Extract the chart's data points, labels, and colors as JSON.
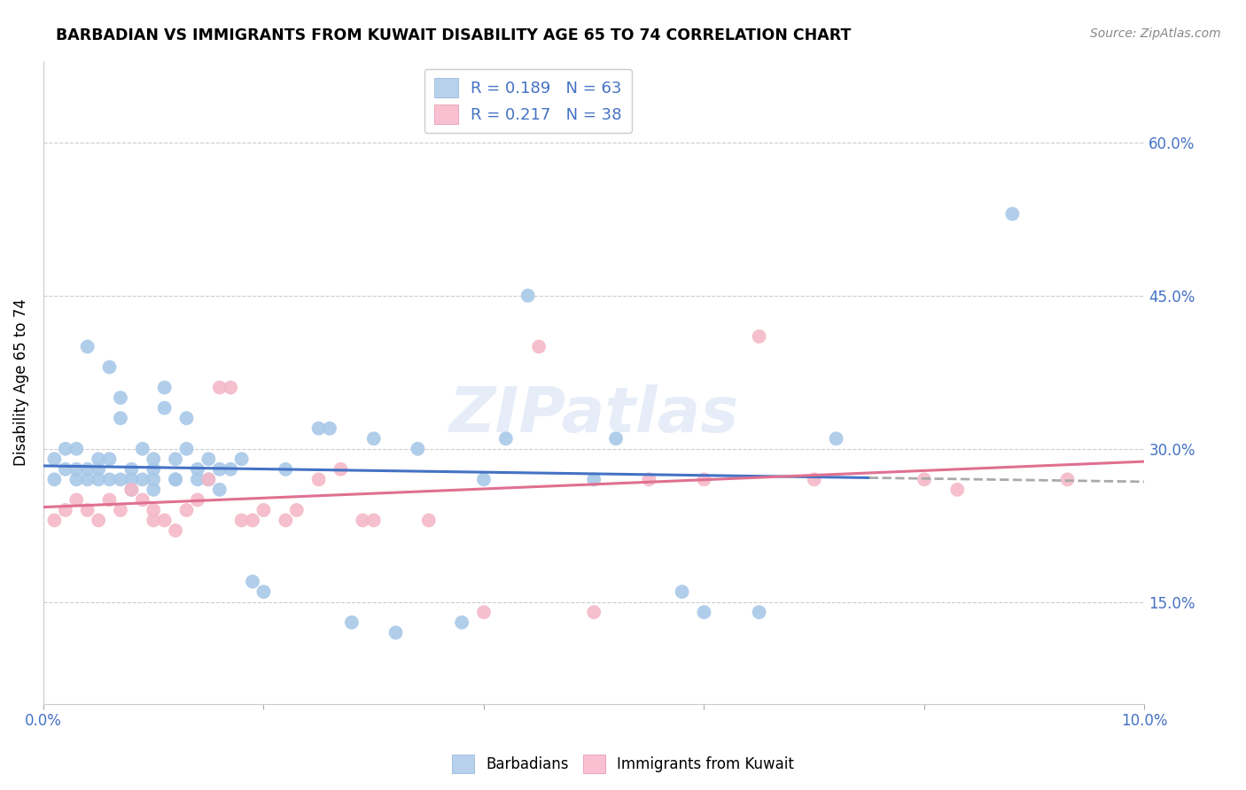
{
  "title": "BARBADIAN VS IMMIGRANTS FROM KUWAIT DISABILITY AGE 65 TO 74 CORRELATION CHART",
  "source": "Source: ZipAtlas.com",
  "ylabel": "Disability Age 65 to 74",
  "text_color": "#4472C4",
  "blue_scatter_color": "#a8c8e8",
  "pink_scatter_color": "#f4b8c8",
  "blue_line_color": "#4472C4",
  "pink_line_color": "#e07090",
  "gray_dash_color": "#aaaaaa",
  "xlim": [
    0.0,
    0.1
  ],
  "ylim": [
    0.05,
    0.68
  ],
  "xticks": [
    0.0,
    0.1
  ],
  "xtick_labels": [
    "0.0%",
    "10.0%"
  ],
  "yticks": [
    0.15,
    0.3,
    0.45,
    0.6
  ],
  "ytick_labels": [
    "15.0%",
    "30.0%",
    "45.0%",
    "60.0%"
  ],
  "legend1_label": "R = 0.189   N = 63",
  "legend2_label": "R = 0.217   N = 38",
  "bottom_legend1": "Barbadians",
  "bottom_legend2": "Immigrants from Kuwait",
  "watermark": "ZIPatlas",
  "barbadians_x": [
    0.001,
    0.001,
    0.002,
    0.002,
    0.003,
    0.003,
    0.003,
    0.004,
    0.004,
    0.004,
    0.005,
    0.005,
    0.005,
    0.006,
    0.006,
    0.007,
    0.007,
    0.007,
    0.008,
    0.008,
    0.009,
    0.009,
    0.01,
    0.01,
    0.01,
    0.011,
    0.011,
    0.012,
    0.012,
    0.013,
    0.013,
    0.014,
    0.015,
    0.015,
    0.016,
    0.016,
    0.017,
    0.018,
    0.019,
    0.02,
    0.022,
    0.025,
    0.026,
    0.028,
    0.03,
    0.032,
    0.034,
    0.038,
    0.04,
    0.042,
    0.044,
    0.05,
    0.052,
    0.058,
    0.06,
    0.065,
    0.072,
    0.088,
    0.006,
    0.008,
    0.01,
    0.012,
    0.014
  ],
  "barbadians_y": [
    0.27,
    0.29,
    0.28,
    0.3,
    0.27,
    0.28,
    0.3,
    0.27,
    0.28,
    0.4,
    0.28,
    0.29,
    0.27,
    0.38,
    0.29,
    0.27,
    0.35,
    0.33,
    0.28,
    0.27,
    0.3,
    0.27,
    0.29,
    0.27,
    0.28,
    0.34,
    0.36,
    0.29,
    0.27,
    0.33,
    0.3,
    0.27,
    0.29,
    0.27,
    0.28,
    0.26,
    0.28,
    0.29,
    0.17,
    0.16,
    0.28,
    0.32,
    0.32,
    0.13,
    0.31,
    0.12,
    0.3,
    0.13,
    0.27,
    0.31,
    0.45,
    0.27,
    0.31,
    0.16,
    0.14,
    0.14,
    0.31,
    0.53,
    0.27,
    0.26,
    0.26,
    0.27,
    0.28
  ],
  "kuwait_x": [
    0.001,
    0.002,
    0.003,
    0.004,
    0.005,
    0.006,
    0.007,
    0.008,
    0.009,
    0.01,
    0.01,
    0.011,
    0.012,
    0.013,
    0.014,
    0.015,
    0.016,
    0.017,
    0.018,
    0.019,
    0.02,
    0.022,
    0.023,
    0.025,
    0.027,
    0.029,
    0.03,
    0.035,
    0.04,
    0.045,
    0.05,
    0.055,
    0.06,
    0.065,
    0.07,
    0.08,
    0.083,
    0.093
  ],
  "kuwait_y": [
    0.23,
    0.24,
    0.25,
    0.24,
    0.23,
    0.25,
    0.24,
    0.26,
    0.25,
    0.24,
    0.23,
    0.23,
    0.22,
    0.24,
    0.25,
    0.27,
    0.36,
    0.36,
    0.23,
    0.23,
    0.24,
    0.23,
    0.24,
    0.27,
    0.28,
    0.23,
    0.23,
    0.23,
    0.14,
    0.4,
    0.14,
    0.27,
    0.27,
    0.41,
    0.27,
    0.27,
    0.26,
    0.27
  ],
  "blue_line_x_solid_end": 0.075,
  "blue_line_x_start": 0.0,
  "blue_line_x_end": 0.1,
  "pink_line_x_start": 0.0,
  "pink_line_x_end": 0.1
}
